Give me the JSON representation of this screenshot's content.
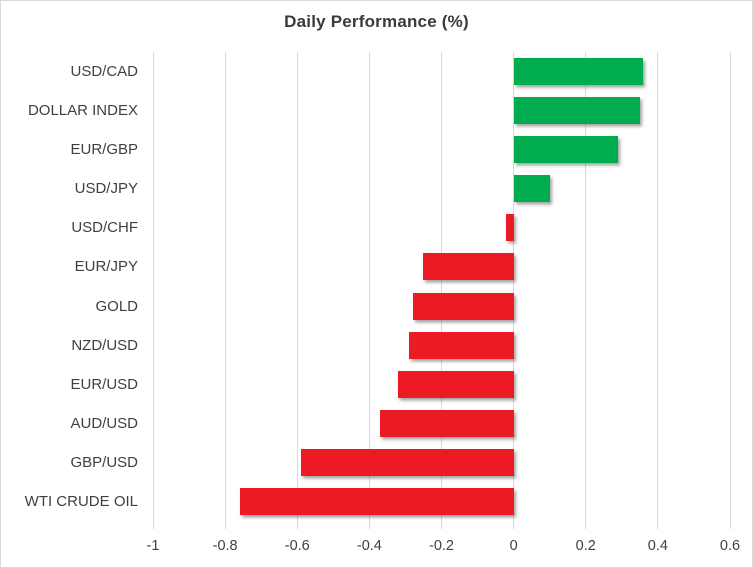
{
  "chart_data": {
    "type": "bar",
    "orientation": "horizontal",
    "title": "Daily Performance (%)",
    "categories": [
      "USD/CAD",
      "DOLLAR INDEX",
      "EUR/GBP",
      "USD/JPY",
      "USD/CHF",
      "EUR/JPY",
      "GOLD",
      "NZD/USD",
      "EUR/USD",
      "AUD/USD",
      "GBP/USD",
      "WTI CRUDE OIL"
    ],
    "values": [
      0.36,
      0.35,
      0.29,
      0.1,
      -0.02,
      -0.25,
      -0.28,
      -0.29,
      -0.32,
      -0.37,
      -0.59,
      -0.76
    ],
    "xlabel": "",
    "ylabel": "",
    "xlim": [
      -1,
      0.6
    ],
    "x_ticks": [
      -1,
      -0.8,
      -0.6,
      -0.4,
      -0.2,
      0,
      0.2,
      0.4,
      0.6
    ],
    "x_tick_labels": [
      "-1",
      "-0.8",
      "-0.6",
      "-0.4",
      "-0.2",
      "0",
      "0.2",
      "0.4",
      "0.6"
    ],
    "grid": "vertical-on",
    "legend": "none",
    "colors": {
      "positive": "#00ac4e",
      "negative": "#ec1b23",
      "gridline": "#d9d9d9",
      "text": "#404040",
      "title": "#3a3a3a",
      "border": "#d9d9d9",
      "background": "#ffffff"
    }
  }
}
